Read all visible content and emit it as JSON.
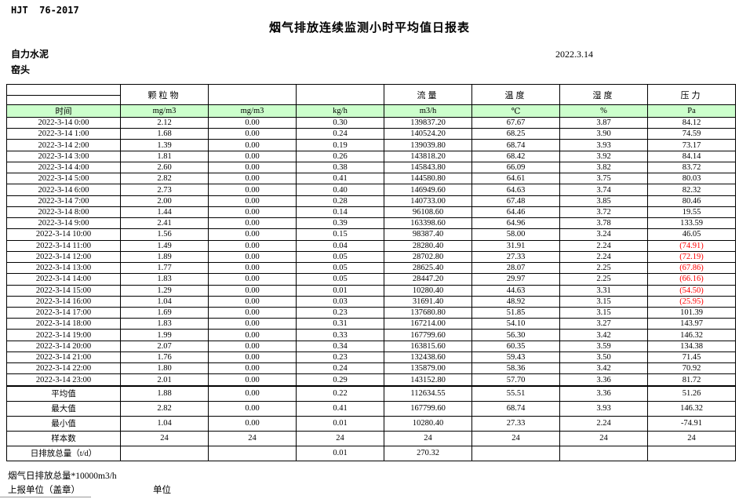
{
  "page": {
    "doc_code": "HJT  76-2017",
    "title": "烟气排放连续监测小时平均值日报表",
    "company": "自力水泥",
    "station": "窑头",
    "date": "2022.3.14"
  },
  "table": {
    "group_headers": [
      "",
      "颗粒物",
      "",
      "",
      "流量",
      "温度",
      "湿度",
      "压力"
    ],
    "unit_headers": [
      "时间",
      "mg/m3",
      "mg/m3",
      "kg/h",
      "m3/h",
      "℃",
      "%",
      "Pa"
    ],
    "header_fill": "#ccffcc",
    "negative_color": "#ff0000",
    "rows": [
      {
        "time": "2022-3-14 0:00",
        "values": [
          "2.12",
          "0.00",
          "0.30",
          "139837.20",
          "67.67",
          "3.87",
          "84.12"
        ]
      },
      {
        "time": "2022-3-14 1:00",
        "values": [
          "1.68",
          "0.00",
          "0.24",
          "140524.20",
          "68.25",
          "3.90",
          "74.59"
        ]
      },
      {
        "time": "2022-3-14 2:00",
        "values": [
          "1.39",
          "0.00",
          "0.19",
          "139039.80",
          "68.74",
          "3.93",
          "73.17"
        ]
      },
      {
        "time": "2022-3-14 3:00",
        "values": [
          "1.81",
          "0.00",
          "0.26",
          "143818.20",
          "68.42",
          "3.92",
          "84.14"
        ]
      },
      {
        "time": "2022-3-14 4:00",
        "values": [
          "2.60",
          "0.00",
          "0.38",
          "145843.80",
          "66.09",
          "3.82",
          "83.72"
        ]
      },
      {
        "time": "2022-3-14 5:00",
        "values": [
          "2.82",
          "0.00",
          "0.41",
          "144580.80",
          "64.61",
          "3.75",
          "80.03"
        ]
      },
      {
        "time": "2022-3-14 6:00",
        "values": [
          "2.73",
          "0.00",
          "0.40",
          "146949.60",
          "64.63",
          "3.74",
          "82.32"
        ]
      },
      {
        "time": "2022-3-14 7:00",
        "values": [
          "2.00",
          "0.00",
          "0.28",
          "140733.00",
          "67.48",
          "3.85",
          "80.46"
        ]
      },
      {
        "time": "2022-3-14 8:00",
        "values": [
          "1.44",
          "0.00",
          "0.14",
          "96108.60",
          "64.46",
          "3.72",
          "19.55"
        ]
      },
      {
        "time": "2022-3-14 9:00",
        "values": [
          "2.41",
          "0.00",
          "0.39",
          "163398.60",
          "64.96",
          "3.78",
          "133.59"
        ]
      },
      {
        "time": "2022-3-14 10:00",
        "values": [
          "1.56",
          "0.00",
          "0.15",
          "98387.40",
          "58.00",
          "3.24",
          "46.05"
        ]
      },
      {
        "time": "2022-3-14 11:00",
        "values": [
          "1.49",
          "0.00",
          "0.04",
          "28280.40",
          "31.91",
          "2.24",
          "(74.91)"
        ]
      },
      {
        "time": "2022-3-14 12:00",
        "values": [
          "1.89",
          "0.00",
          "0.05",
          "28702.80",
          "27.33",
          "2.24",
          "(72.19)"
        ]
      },
      {
        "time": "2022-3-14 13:00",
        "values": [
          "1.77",
          "0.00",
          "0.05",
          "28625.40",
          "28.07",
          "2.25",
          "(67.86)"
        ]
      },
      {
        "time": "2022-3-14 14:00",
        "values": [
          "1.83",
          "0.00",
          "0.05",
          "28447.20",
          "29.97",
          "2.25",
          "(66.16)"
        ]
      },
      {
        "time": "2022-3-14 15:00",
        "values": [
          "1.29",
          "0.00",
          "0.01",
          "10280.40",
          "44.63",
          "3.31",
          "(54.50)"
        ]
      },
      {
        "time": "2022-3-14 16:00",
        "values": [
          "1.04",
          "0.00",
          "0.03",
          "31691.40",
          "48.92",
          "3.15",
          "(25.95)"
        ]
      },
      {
        "time": "2022-3-14 17:00",
        "values": [
          "1.69",
          "0.00",
          "0.23",
          "137680.80",
          "51.85",
          "3.15",
          "101.39"
        ]
      },
      {
        "time": "2022-3-14 18:00",
        "values": [
          "1.83",
          "0.00",
          "0.31",
          "167214.00",
          "54.10",
          "3.27",
          "143.97"
        ]
      },
      {
        "time": "2022-3-14 19:00",
        "values": [
          "1.99",
          "0.00",
          "0.33",
          "167799.60",
          "56.30",
          "3.42",
          "146.32"
        ]
      },
      {
        "time": "2022-3-14 20:00",
        "values": [
          "2.07",
          "0.00",
          "0.34",
          "163815.60",
          "60.35",
          "3.59",
          "134.38"
        ]
      },
      {
        "time": "2022-3-14 21:00",
        "values": [
          "1.76",
          "0.00",
          "0.23",
          "132438.60",
          "59.43",
          "3.50",
          "71.45"
        ]
      },
      {
        "time": "2022-3-14 22:00",
        "values": [
          "1.80",
          "0.00",
          "0.24",
          "135879.00",
          "58.36",
          "3.42",
          "70.92"
        ]
      },
      {
        "time": "2022-3-14 23:00",
        "values": [
          "2.01",
          "0.00",
          "0.29",
          "143152.80",
          "57.70",
          "3.36",
          "81.72"
        ]
      }
    ],
    "summary_rows": [
      {
        "label": "平均值",
        "values": [
          "1.88",
          "0.00",
          "0.22",
          "112634.55",
          "55.51",
          "3.36",
          "51.26"
        ]
      },
      {
        "label": "最大值",
        "values": [
          "2.82",
          "0.00",
          "0.41",
          "167799.60",
          "68.74",
          "3.93",
          "146.32"
        ]
      },
      {
        "label": "最小值",
        "values": [
          "1.04",
          "0.00",
          "0.01",
          "10280.40",
          "27.33",
          "2.24",
          "-74.91"
        ]
      },
      {
        "label": "样本数",
        "values": [
          "24",
          "24",
          "24",
          "24",
          "24",
          "24",
          "24"
        ]
      },
      {
        "label": "日排放总量（t/d）",
        "values": [
          "",
          "",
          "0.01",
          "270.32",
          "",
          "",
          ""
        ]
      }
    ]
  },
  "footer": {
    "note": "烟气日排放总量*10000m3/h",
    "report_unit_label": "上报单位（盖章）",
    "unit_label": "单位"
  }
}
